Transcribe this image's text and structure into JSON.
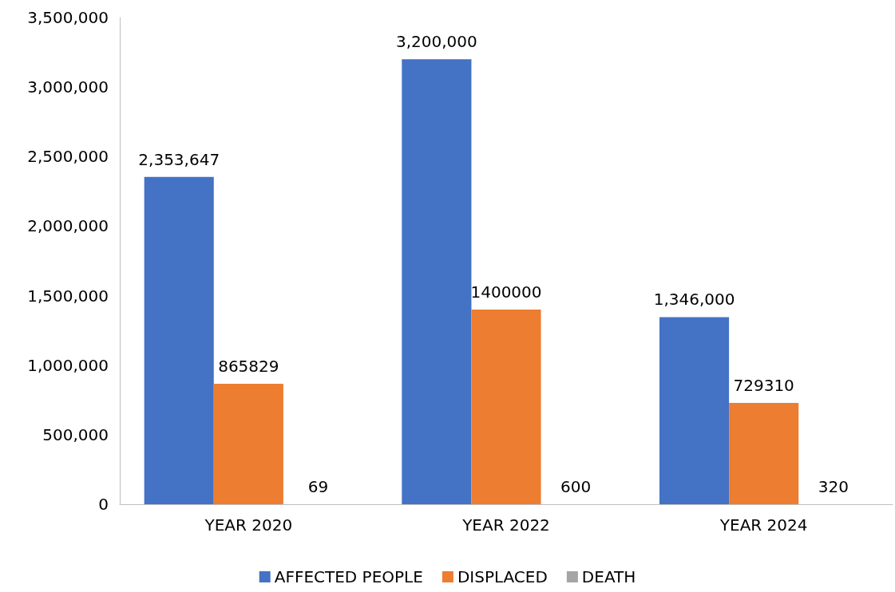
{
  "chart_data": {
    "type": "bar",
    "categories": [
      "YEAR 2020",
      "YEAR 2022",
      "YEAR 2024"
    ],
    "series": [
      {
        "name": "AFFECTED PEOPLE",
        "color": "#4472c4",
        "values": [
          2353647,
          3200000,
          1346000
        ],
        "value_labels": [
          "2,353,647",
          "3,200,000",
          "1,346,000"
        ]
      },
      {
        "name": "DISPLACED",
        "color": "#ed7d31",
        "values": [
          865829,
          1400000,
          729310
        ],
        "value_labels": [
          "865829",
          "1400000",
          "729310"
        ]
      },
      {
        "name": "DEATH",
        "color": "#a5a5a5",
        "values": [
          69,
          600,
          320
        ],
        "value_labels": [
          "69",
          "600",
          "320"
        ]
      }
    ],
    "ylim": [
      0,
      3500000
    ],
    "yticks": [
      0,
      {
        "value": 500000,
        "label": "500,000"
      },
      {
        "value": 1000000,
        "label": "1,000,000"
      },
      {
        "value": 1500000,
        "label": "1,500,000"
      },
      {
        "value": 2000000,
        "label": "2,000,000"
      },
      {
        "value": 2500000,
        "label": "2,500,000"
      },
      {
        "value": 3000000,
        "label": "3,000,000"
      },
      {
        "value": 3500000,
        "label": "3,500,000"
      }
    ],
    "grid": false,
    "legend": "bottom"
  }
}
